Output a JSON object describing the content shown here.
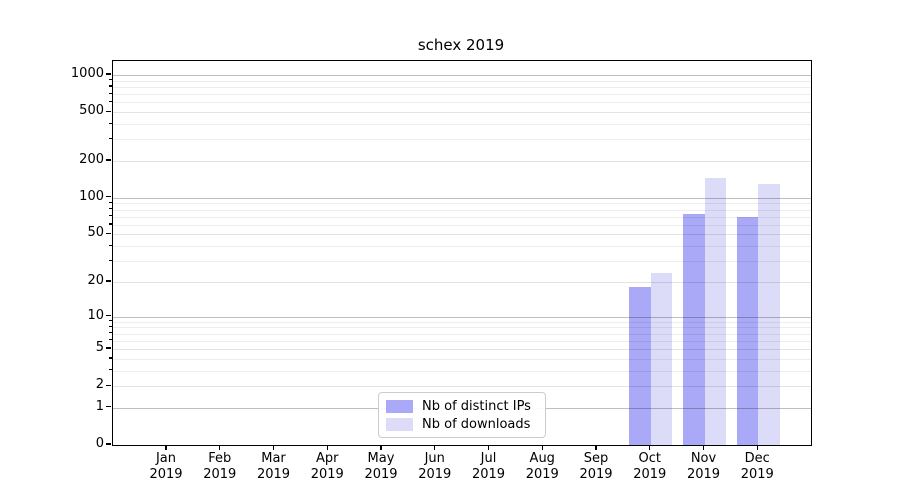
{
  "title": "schex 2019",
  "chart_data": {
    "type": "bar",
    "title": "schex 2019",
    "categories": [
      "Jan",
      "Feb",
      "Mar",
      "Apr",
      "May",
      "Jun",
      "Jul",
      "Aug",
      "Sep",
      "Oct",
      "Nov",
      "Dec"
    ],
    "category_year": "2019",
    "series": [
      {
        "name": "Nb of distinct IPs",
        "color": "#a9a9f7",
        "values": [
          0,
          0,
          0,
          0,
          0,
          0,
          0,
          0,
          0,
          18,
          74,
          70
        ]
      },
      {
        "name": "Nb of downloads",
        "color": "#dcdcf8",
        "values": [
          0,
          0,
          0,
          0,
          0,
          0,
          0,
          0,
          0,
          24,
          145,
          130
        ]
      }
    ],
    "xlabel": "",
    "ylabel": "",
    "yscale": "log1p",
    "ylim": [
      0,
      1300
    ],
    "yticks": [
      0,
      1,
      2,
      5,
      10,
      20,
      50,
      100,
      200,
      500,
      1000
    ],
    "minor_yticks": [
      3,
      4,
      6,
      7,
      8,
      9,
      30,
      40,
      60,
      70,
      80,
      90,
      300,
      400,
      600,
      700,
      800,
      900
    ],
    "grid": "both",
    "legend_position": "lower-center"
  },
  "colors": {
    "background": "#ffffff",
    "spine": "#000000",
    "grid_decade": "rgba(0,0,0,0.25)",
    "grid_labeled": "rgba(0,0,0,0.11)",
    "grid_minor": "rgba(0,0,0,0.07)",
    "text": "#000000",
    "legend_border": "#cccccc"
  }
}
